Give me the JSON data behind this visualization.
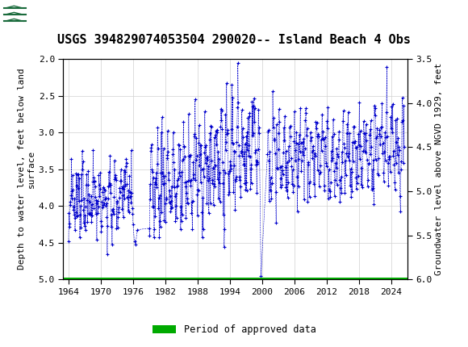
{
  "title": "USGS 394829074053504 290020-- Island Beach 4 Obs",
  "ylabel_left": "Depth to water level, feet below land\nsurface",
  "ylabel_right": "Groundwater level above NGVD 1929, feet",
  "ylim_left": [
    2.0,
    5.0
  ],
  "ylim_right": [
    3.5,
    6.0
  ],
  "xlim": [
    1963,
    2027
  ],
  "xticks": [
    1964,
    1970,
    1976,
    1982,
    1988,
    1994,
    2000,
    2006,
    2012,
    2018,
    2024
  ],
  "yticks_left": [
    2.0,
    2.5,
    3.0,
    3.5,
    4.0,
    4.5,
    5.0
  ],
  "yticks_right": [
    3.5,
    4.0,
    4.5,
    5.0,
    5.5,
    6.0
  ],
  "data_color": "#0000cc",
  "approved_color": "#00aa00",
  "header_color": "#1a6b3c",
  "background_color": "#ffffff",
  "legend_label": "Period of approved data",
  "title_fontsize": 11,
  "axis_fontsize": 8,
  "tick_fontsize": 8
}
